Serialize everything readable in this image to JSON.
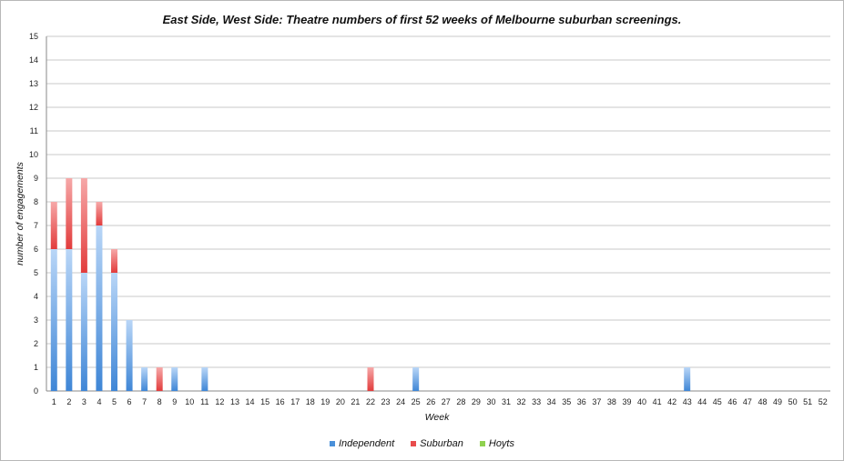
{
  "chart_data": {
    "type": "bar",
    "stacked": true,
    "title": "East Side, West Side: Theatre numbers of first 52 weeks of Melbourne suburban screenings.",
    "xlabel": "Week",
    "ylabel": "number of engagements",
    "ylim": [
      0,
      15
    ],
    "yticks": [
      "0",
      "1",
      "2",
      "3",
      "4",
      "5",
      "6",
      "7",
      "8",
      "9",
      "10",
      "11",
      "12",
      "13",
      "14",
      "15"
    ],
    "categories": [
      "1",
      "2",
      "3",
      "4",
      "5",
      "6",
      "7",
      "8",
      "9",
      "10",
      "11",
      "12",
      "13",
      "14",
      "15",
      "16",
      "17",
      "18",
      "19",
      "20",
      "21",
      "22",
      "23",
      "24",
      "25",
      "26",
      "27",
      "28",
      "29",
      "30",
      "31",
      "32",
      "33",
      "34",
      "35",
      "36",
      "37",
      "38",
      "39",
      "40",
      "41",
      "42",
      "43",
      "44",
      "45",
      "46",
      "47",
      "48",
      "49",
      "50",
      "51",
      "52"
    ],
    "grid": true,
    "legend_position": "bottom",
    "series": [
      {
        "name": "Independent",
        "color": "#4a90d9",
        "values": [
          6,
          6,
          5,
          7,
          5,
          3,
          1,
          0,
          1,
          0,
          1,
          0,
          0,
          0,
          0,
          0,
          0,
          0,
          0,
          0,
          0,
          0,
          0,
          0,
          1,
          0,
          0,
          0,
          0,
          0,
          0,
          0,
          0,
          0,
          0,
          0,
          0,
          0,
          0,
          0,
          0,
          0,
          1,
          0,
          0,
          0,
          0,
          0,
          0,
          0,
          0,
          0
        ]
      },
      {
        "name": "Suburban",
        "color": "#e84c4c",
        "values": [
          2,
          3,
          4,
          1,
          1,
          0,
          0,
          1,
          0,
          0,
          0,
          0,
          0,
          0,
          0,
          0,
          0,
          0,
          0,
          0,
          0,
          1,
          0,
          0,
          0,
          0,
          0,
          0,
          0,
          0,
          0,
          0,
          0,
          0,
          0,
          0,
          0,
          0,
          0,
          0,
          0,
          0,
          0,
          0,
          0,
          0,
          0,
          0,
          0,
          0,
          0,
          0
        ]
      },
      {
        "name": "Hoyts",
        "color": "#8fd14f",
        "values": [
          0,
          0,
          0,
          0,
          0,
          0,
          0,
          0,
          0,
          0,
          0,
          0,
          0,
          0,
          0,
          0,
          0,
          0,
          0,
          0,
          0,
          0,
          0,
          0,
          0,
          0,
          0,
          0,
          0,
          0,
          0,
          0,
          0,
          0,
          0,
          0,
          0,
          0,
          0,
          0,
          0,
          0,
          0,
          0,
          0,
          0,
          0,
          0,
          0,
          0,
          0,
          0
        ]
      }
    ]
  }
}
